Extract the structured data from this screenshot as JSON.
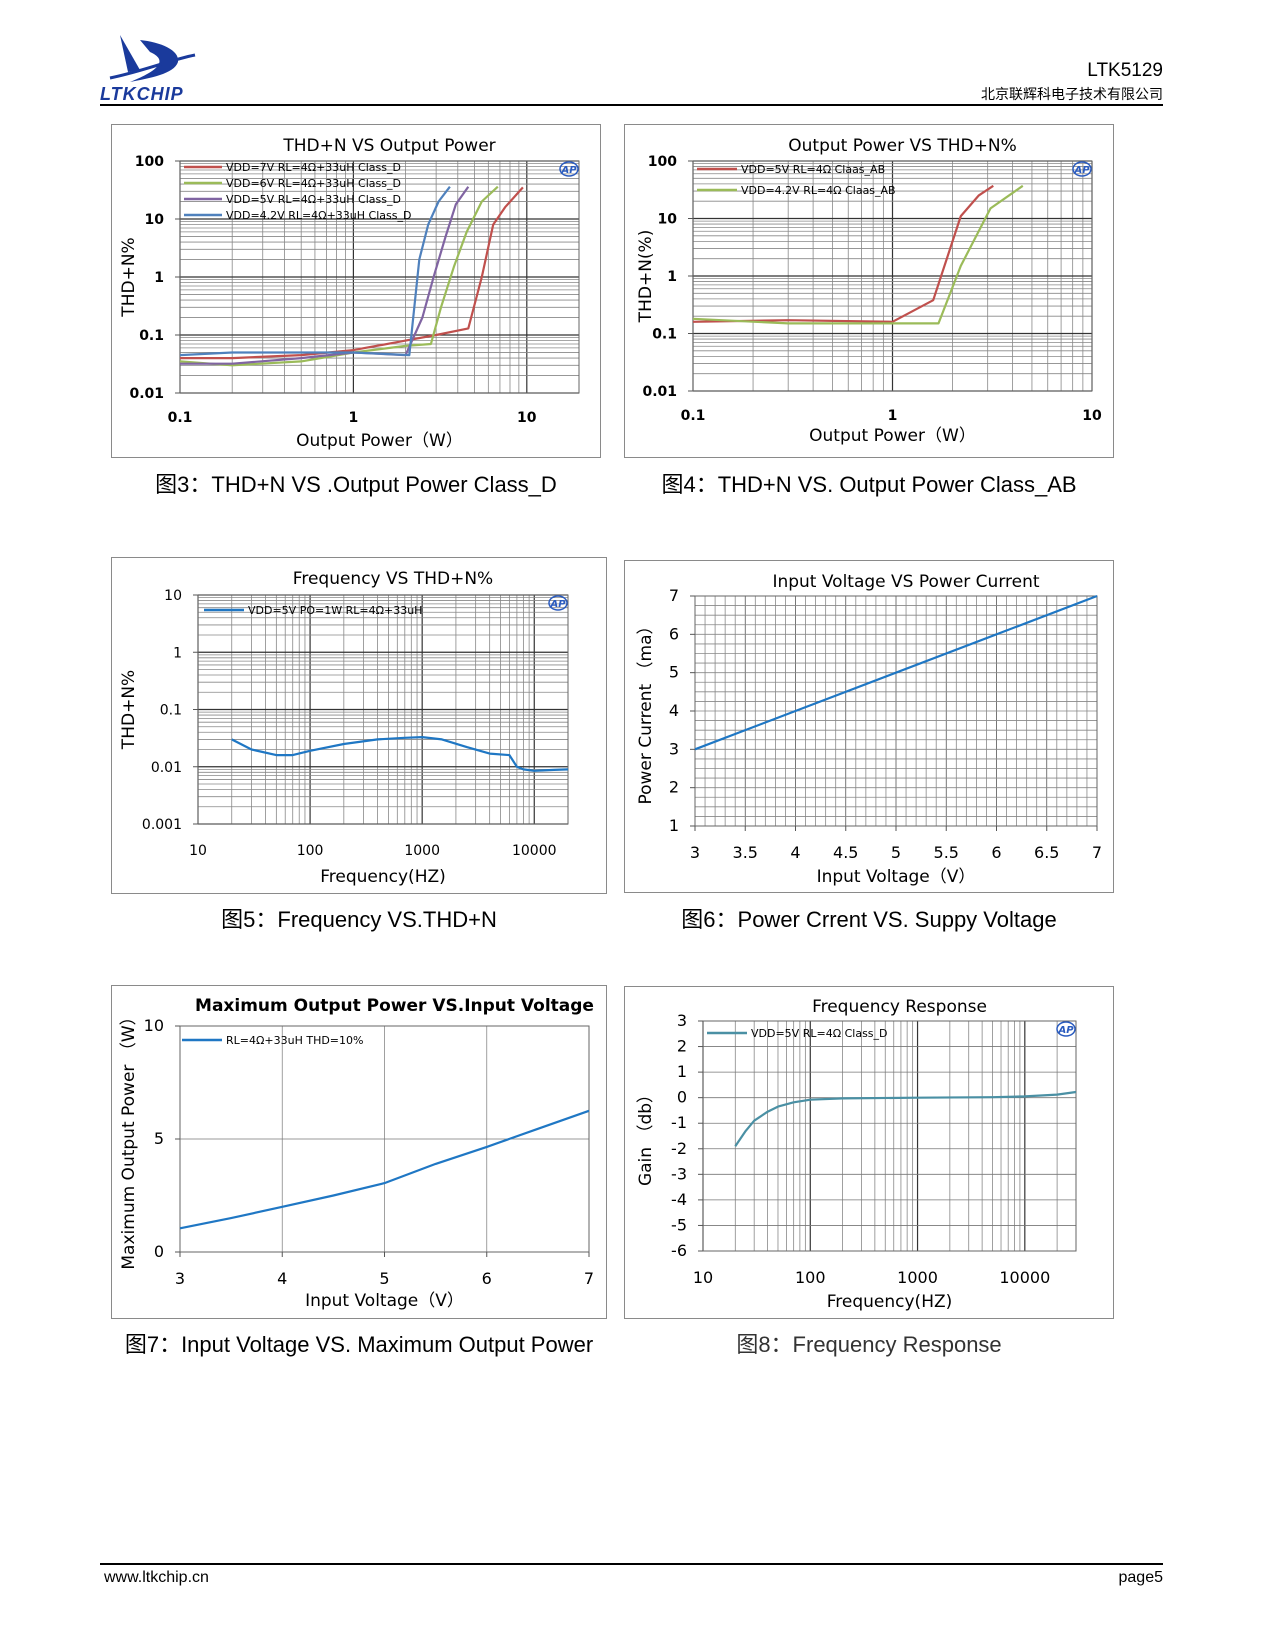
{
  "header": {
    "logo_text": "LTKCHIP",
    "model": "LTK5129",
    "company": "北京联辉科电子技术有限公司"
  },
  "footer": {
    "website": "www.ltkchip.cn",
    "page": "page5"
  },
  "captions": {
    "fig3": "图3：THD+N VS .Output Power Class_D",
    "fig4": "图4：THD+N VS. Output Power Class_AB",
    "fig5": "图5：Frequency VS.THD+N",
    "fig6": "图6：Power Crrent VS. Suppy Voltage",
    "fig7": "图7：Input Voltage VS. Maximum Output Power",
    "fig8": "图8：Frequency Response"
  },
  "colors": {
    "red": "#c0504d",
    "green": "#9bbb59",
    "purple": "#8064a2",
    "blue": "#1f77c4",
    "blue2": "#4f81bd",
    "grid": "#888888"
  },
  "chart_data": [
    {
      "id": "fig3",
      "type": "line",
      "xscale": "log",
      "yscale": "log",
      "title": "THD+N VS Output Power",
      "xlabel": "Output Power（W）",
      "ylabel": "THD+N%",
      "xlim": [
        0.1,
        20
      ],
      "ylim": [
        0.01,
        100
      ],
      "xticks": [
        0.1,
        1,
        10
      ],
      "xtick_labels": [
        "0.1",
        "1",
        "10"
      ],
      "yticks": [
        100,
        10,
        1,
        0.1,
        0.01
      ],
      "ytick_labels": [
        "100",
        "10",
        "1",
        "0.1",
        "0.01"
      ],
      "ap_logo": "AP",
      "series": [
        {
          "name": "VDD=7V  RL=4Ω+33uH Class_D",
          "color": "#c0504d",
          "x": [
            0.1,
            0.2,
            0.5,
            1,
            2,
            3,
            4.6,
            5.5,
            6.4,
            7.5,
            9.5
          ],
          "y": [
            0.04,
            0.04,
            0.045,
            0.055,
            0.08,
            0.1,
            0.13,
            1.0,
            8,
            16,
            35
          ]
        },
        {
          "name": "VDD=6V  RL=4Ω+33uH Class_D",
          "color": "#9bbb59",
          "x": [
            0.1,
            0.2,
            0.5,
            1,
            2,
            2.8,
            3.2,
            3.8,
            4.5,
            5.5,
            6.8
          ],
          "y": [
            0.035,
            0.03,
            0.035,
            0.05,
            0.065,
            0.07,
            0.3,
            1.5,
            6,
            20,
            36
          ]
        },
        {
          "name": "VDD=5V  RL=4Ω+33uH Class_D",
          "color": "#8064a2",
          "x": [
            0.1,
            0.2,
            0.5,
            1,
            2,
            2.5,
            2.9,
            3.4,
            3.9,
            4.6
          ],
          "y": [
            0.032,
            0.032,
            0.04,
            0.05,
            0.045,
            0.2,
            1,
            5,
            18,
            36
          ]
        },
        {
          "name": "VDD=4.2V  RL=4Ω+33uH Class_D",
          "color": "#4f81bd",
          "x": [
            0.1,
            0.2,
            0.5,
            1,
            2.1,
            2.4,
            2.7,
            3.1,
            3.6
          ],
          "y": [
            0.045,
            0.05,
            0.05,
            0.05,
            0.045,
            2,
            8,
            20,
            36
          ]
        }
      ]
    },
    {
      "id": "fig4",
      "type": "line",
      "xscale": "log",
      "yscale": "log",
      "title": "Output Power VS THD+N%",
      "xlabel": "Output Power（W）",
      "ylabel": "THD+N(%)",
      "xlim": [
        0.1,
        10
      ],
      "ylim": [
        0.01,
        100
      ],
      "xticks": [
        0.1,
        1,
        10
      ],
      "xtick_labels": [
        "0.1",
        "1",
        "10"
      ],
      "yticks": [
        100,
        10,
        1,
        0.1,
        0.01
      ],
      "ytick_labels": [
        "100",
        "10",
        "1",
        "0.1",
        "0.01"
      ],
      "ap_logo": "AP",
      "series": [
        {
          "name": "VDD=5V  RL=4Ω  Claas_AB",
          "color": "#c0504d",
          "x": [
            0.1,
            0.3,
            1,
            1.6,
            2.2,
            2.7,
            3.2
          ],
          "y": [
            0.16,
            0.17,
            0.16,
            0.38,
            11,
            25,
            37
          ]
        },
        {
          "name": "VDD=4.2V  RL=4Ω  Claas_AB",
          "color": "#9bbb59",
          "x": [
            0.1,
            0.3,
            1,
            1.7,
            2.2,
            3.1,
            4.5
          ],
          "y": [
            0.18,
            0.15,
            0.15,
            0.15,
            1.5,
            15,
            37
          ]
        }
      ]
    },
    {
      "id": "fig5",
      "type": "line",
      "xscale": "log",
      "yscale": "log",
      "title": "Frequency VS THD+N%",
      "xlabel": "Frequency(HZ)",
      "ylabel": "THD+N%",
      "xlim": [
        10,
        20000
      ],
      "ylim": [
        0.001,
        10
      ],
      "xticks": [
        10,
        100,
        1000,
        10000
      ],
      "xtick_labels": [
        "10",
        "100",
        "1000",
        "10000"
      ],
      "yticks": [
        10,
        1,
        0.1,
        0.01,
        0.001
      ],
      "ytick_labels": [
        "10",
        "1",
        "0.1",
        "0.01",
        "0.001"
      ],
      "ap_logo": "AP",
      "series": [
        {
          "name": "VDD=5V  PO=1W RL=4Ω+33uH",
          "color": "#1f77c4",
          "x": [
            20,
            30,
            50,
            70,
            100,
            200,
            400,
            700,
            1000,
            1500,
            2500,
            4000,
            6000,
            7000,
            8000,
            10000,
            15000,
            20000
          ],
          "y": [
            0.03,
            0.02,
            0.016,
            0.016,
            0.019,
            0.025,
            0.03,
            0.032,
            0.033,
            0.03,
            0.022,
            0.017,
            0.016,
            0.01,
            0.009,
            0.0085,
            0.0088,
            0.009
          ]
        }
      ]
    },
    {
      "id": "fig6",
      "type": "line",
      "xscale": "linear",
      "yscale": "linear",
      "title": "Input Voltage VS Power Current",
      "xlabel": "Input Voltage（V）",
      "ylabel": "Power Current （ma）",
      "xlim": [
        3,
        7
      ],
      "ylim": [
        1,
        7
      ],
      "xticks": [
        3,
        3.5,
        4,
        4.5,
        5,
        5.5,
        6,
        6.5,
        7
      ],
      "xtick_labels": [
        "3",
        "3.5",
        "4",
        "4.5",
        "5",
        "5.5",
        "6",
        "6.5",
        "7"
      ],
      "yticks": [
        7,
        6,
        5,
        4,
        3,
        2,
        1
      ],
      "ytick_labels": [
        "7",
        "6",
        "5",
        "4",
        "3",
        "2",
        "1"
      ],
      "series": [
        {
          "name": "",
          "color": "#1f77c4",
          "x": [
            3,
            7
          ],
          "y": [
            3,
            7
          ]
        }
      ]
    },
    {
      "id": "fig7",
      "type": "line",
      "xscale": "linear",
      "yscale": "linear",
      "title": "Maximum Output Power VS.Input Voltage",
      "xlabel": "Input Voltage（V）",
      "ylabel": "Maximum Output Power （W）",
      "xlim": [
        3,
        7
      ],
      "ylim": [
        0,
        10
      ],
      "xticks": [
        3,
        4,
        5,
        6,
        7
      ],
      "xtick_labels": [
        "3",
        "4",
        "5",
        "6",
        "7"
      ],
      "yticks": [
        10,
        5,
        0
      ],
      "ytick_labels": [
        "10",
        "5",
        "0"
      ],
      "series": [
        {
          "name": "RL=4Ω+33uH  THD=10%",
          "color": "#1f77c4",
          "x": [
            3,
            3.5,
            4,
            4.5,
            5,
            5.5,
            6,
            6.5,
            7
          ],
          "y": [
            1.05,
            1.5,
            2.0,
            2.5,
            3.05,
            3.9,
            4.65,
            5.45,
            6.25
          ]
        }
      ]
    },
    {
      "id": "fig8",
      "type": "line",
      "xscale": "log",
      "yscale": "linear",
      "title": "Frequency Response",
      "xlabel": "Frequency(HZ)",
      "ylabel": "Gain （db）",
      "xlim": [
        10,
        30000
      ],
      "ylim": [
        -6,
        3
      ],
      "xticks": [
        10,
        100,
        1000,
        10000
      ],
      "xtick_labels": [
        "10",
        "100",
        "1000",
        "10000"
      ],
      "yticks": [
        3,
        2,
        1,
        0,
        -1,
        -2,
        -3,
        -4,
        -5,
        -6
      ],
      "ytick_labels": [
        "3",
        "2",
        "1",
        "0",
        "-1",
        "-2",
        "-3",
        "-4",
        "-5",
        "-6"
      ],
      "ap_logo": "AP",
      "series": [
        {
          "name": "VDD=5V  RL=4Ω  Class_D",
          "color": "#4a90a4",
          "x": [
            20,
            25,
            30,
            40,
            50,
            70,
            100,
            200,
            1000,
            5000,
            10000,
            20000,
            30000
          ],
          "y": [
            -1.9,
            -1.3,
            -0.9,
            -0.55,
            -0.35,
            -0.18,
            -0.08,
            -0.03,
            0,
            0.02,
            0.05,
            0.12,
            0.22
          ]
        }
      ]
    }
  ]
}
